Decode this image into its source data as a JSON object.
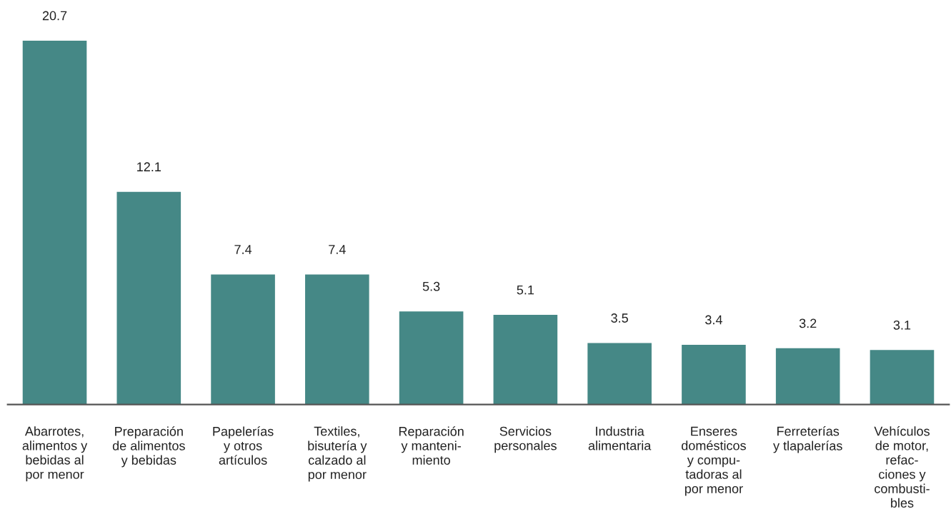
{
  "chart_data": {
    "type": "bar",
    "categories": [
      "Abarrotes,\nalimentos y\nbebidas al\npor menor",
      "Preparación\nde alimentos\ny bebidas",
      "Papelerías\ny otros\nartículos",
      "Textiles,\nbisutería y\ncalzado al\npor menor",
      "Reparación\ny manteni-\nmiento",
      "Servicios\npersonales",
      "Industria\nalimentaria",
      "Enseres\ndomésticos\ny compu-\ntadoras al\npor menor",
      "Ferreterías\ny tlapalerías",
      "Vehículos\nde motor,\nrefac-\nciones y\ncombusti-\nbles"
    ],
    "values": [
      20.7,
      12.1,
      7.4,
      7.4,
      5.3,
      5.1,
      3.5,
      3.4,
      3.2,
      3.1
    ],
    "color": "#458886",
    "data_labels": true,
    "grid": false,
    "legend": false
  }
}
